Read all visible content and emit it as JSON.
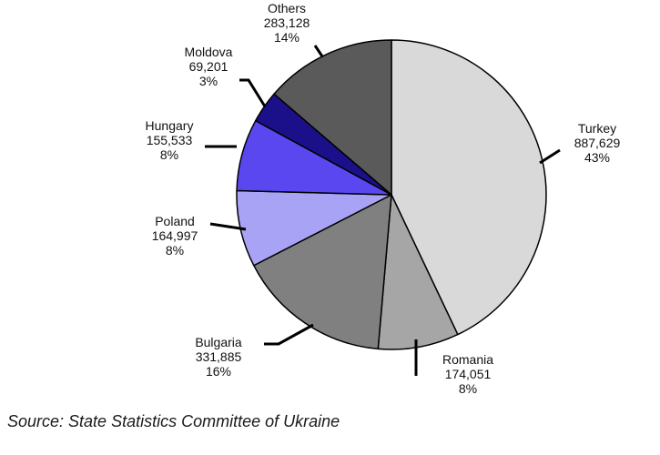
{
  "chart_data": {
    "type": "pie",
    "title": "",
    "start_angle_deg": 0,
    "direction": "clockwise",
    "slices": [
      {
        "label": "Turkey",
        "value_text": "887,629",
        "percent_text": "43%",
        "value": 887629,
        "color": "#d9d9d9"
      },
      {
        "label": "Romania",
        "value_text": "174,051",
        "percent_text": "8%",
        "value": 174051,
        "color": "#a6a6a6"
      },
      {
        "label": "Bulgaria",
        "value_text": "331,885",
        "percent_text": "16%",
        "value": 331885,
        "color": "#808080"
      },
      {
        "label": "Poland",
        "value_text": "164,997",
        "percent_text": "8%",
        "value": 164997,
        "color": "#a9a3f5"
      },
      {
        "label": "Hungary",
        "value_text": "155,533",
        "percent_text": "8%",
        "value": 155533,
        "color": "#5b47ef"
      },
      {
        "label": "Moldova",
        "value_text": "69,201",
        "percent_text": "3%",
        "value": 69201,
        "color": "#1c0f8a"
      },
      {
        "label": "Others",
        "value_text": "283,128",
        "percent_text": "14%",
        "value": 283128,
        "color": "#5a5a5a"
      }
    ]
  },
  "footer": {
    "source": "Source: State Statistics Committee of Ukraine"
  }
}
